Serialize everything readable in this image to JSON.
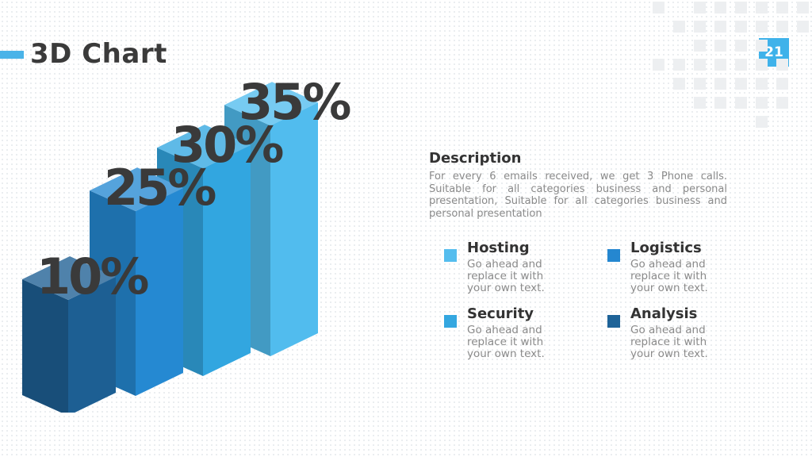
{
  "header": {
    "title": "3D Chart",
    "page_number": "21",
    "accent_color": "#4ab3e8"
  },
  "chart_data": {
    "type": "bar",
    "style": "3d-stepped",
    "categories": [
      "",
      "",
      "",
      ""
    ],
    "values": [
      10,
      25,
      30,
      35
    ],
    "value_labels": [
      "10%",
      "25%",
      "30%",
      "35%"
    ],
    "colors": [
      "#1d5f93",
      "#2589d2",
      "#32a6e0",
      "#51bcee"
    ],
    "grid": false,
    "legend": "right"
  },
  "description": {
    "title": "Description",
    "body": "For every 6 emails received, we get 3 Phone calls. Suitable for all categories business and personal presentation, Suitable for all categories business and personal presentation"
  },
  "legend": {
    "items": [
      {
        "title": "Hosting",
        "text": "Go ahead and replace it with your own text.",
        "color": "#55bdee"
      },
      {
        "title": "Logistics",
        "text": "Go ahead and replace it with your own text.",
        "color": "#2587d0"
      },
      {
        "title": "Security",
        "text": "Go ahead and replace it with your own text.",
        "color": "#34a7e0"
      },
      {
        "title": "Analysis",
        "text": "Go ahead and replace it with your own text.",
        "color": "#1e6398"
      }
    ]
  }
}
